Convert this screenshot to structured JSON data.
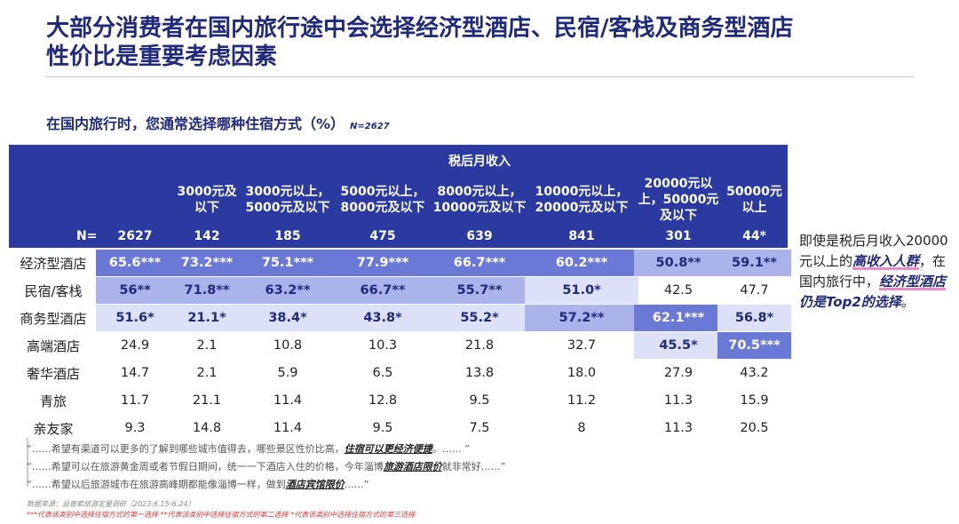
{
  "title_line1": "大部分消费者在国内旅行途中会选择经济型酒店、民宿/客栈及商务型酒店",
  "title_line2": "性价比是重要考虑因素",
  "subtitle": "在国内旅行时，您通常选择哪种住宿方式（%）",
  "subtitle_n": "N=2627",
  "income_header": "税后月收入",
  "n_label": "N=",
  "columns": [
    {
      "label": "",
      "n": "2627"
    },
    {
      "label": "3000元及以下",
      "n": "142"
    },
    {
      "label": "3000元以上，5000元及以下",
      "n": "185"
    },
    {
      "label": "5000元以上，8000元及以下",
      "n": "475"
    },
    {
      "label": "8000元以上，10000元及以下",
      "n": "639"
    },
    {
      "label": "10000元以上，20000元及以下",
      "n": "841"
    },
    {
      "label": "20000元以上，50000元及以下",
      "n": "301"
    },
    {
      "label": "50000元以上",
      "n": "44*"
    }
  ],
  "rows": [
    {
      "label": "经济型酒店",
      "cells": [
        "65.6***",
        "73.2***",
        "75.1***",
        "77.9***",
        "66.7***",
        "60.2***",
        "50.8**",
        "59.1**"
      ]
    },
    {
      "label": "民宿/客栈",
      "cells": [
        "56**",
        "71.8**",
        "63.2**",
        "66.7**",
        "55.7**",
        "51.0*",
        "42.5",
        "47.7"
      ]
    },
    {
      "label": "商务型酒店",
      "cells": [
        "51.6*",
        "21.1*",
        "38.4*",
        "43.8*",
        "55.2*",
        "57.2**",
        "62.1***",
        "56.8*"
      ]
    },
    {
      "label": "高端酒店",
      "cells": [
        "24.9",
        "2.1",
        "10.8",
        "10.3",
        "21.8",
        "32.7",
        "45.5*",
        "70.5***"
      ]
    },
    {
      "label": "奢华酒店",
      "cells": [
        "14.7",
        "2.1",
        "5.9",
        "6.5",
        "13.8",
        "18.0",
        "27.9",
        "43.2"
      ]
    },
    {
      "label": "青旅",
      "cells": [
        "11.7",
        "21.1",
        "11.4",
        "12.8",
        "9.5",
        "11.2",
        "11.3",
        "15.9"
      ]
    },
    {
      "label": "亲友家",
      "cells": [
        "9.3",
        "14.8",
        "11.4",
        "9.5",
        "7.5",
        "8",
        "11.3",
        "20.5"
      ]
    }
  ],
  "note": {
    "p1": "即使是税后月收入20000元以上的",
    "p2": "高收入人群",
    "p3": "，在国内旅行中，",
    "p4": "经济型酒店",
    "p5": "仍是Top2的选择",
    "p6": "。"
  },
  "quotes": [
    {
      "a": "“……希望有渠道可以更多的了解到哪些城市值得去，哪些景区性价比高，",
      "b": "住宿可以更经济便捷",
      "c": "。…… ”"
    },
    {
      "a": "“……希望可以在旅游黄金周或者节假日期间，统一一下酒店入住的价格，今年淄博",
      "b": "旅游酒店限价",
      "c": "就非常好……”"
    },
    {
      "a": "“……希望以后旅游城市在旅游高峰期都能像淄博一样，做到",
      "b": "酒店宾馆限价",
      "c": "……”"
    }
  ],
  "source": "数据来源：益普索旅游定量调研（2023.6.15-6.24）",
  "legend": "***代表该类别中选择住宿方式的第一选择 **代表该类别中选择住宿方式的第二选择 *代表该类别中选择住宿方式的第三选择",
  "chart_data": {
    "type": "table",
    "title": "在国内旅行时，您通常选择哪种住宿方式（%）",
    "categories": [
      "经济型酒店",
      "民宿/客栈",
      "商务型酒店",
      "高端酒店",
      "奢华酒店",
      "青旅",
      "亲友家"
    ],
    "series": [
      {
        "name": "2627",
        "values": [
          65.6,
          56,
          51.6,
          24.9,
          14.7,
          11.7,
          9.3
        ]
      },
      {
        "name": "3000元及以下",
        "values": [
          73.2,
          71.8,
          21.1,
          2.1,
          2.1,
          21.1,
          14.8
        ]
      },
      {
        "name": "3000元以上，5000元及以下",
        "values": [
          75.1,
          63.2,
          38.4,
          10.8,
          5.9,
          11.4,
          11.4
        ]
      },
      {
        "name": "5000元以上，8000元及以下",
        "values": [
          77.9,
          66.7,
          43.8,
          10.3,
          6.5,
          12.8,
          9.5
        ]
      },
      {
        "name": "8000元以上，10000元及以下",
        "values": [
          66.7,
          55.7,
          55.2,
          21.8,
          13.8,
          9.5,
          7.5
        ]
      },
      {
        "name": "10000元以上，20000元及以下",
        "values": [
          60.2,
          51.0,
          57.2,
          32.7,
          18.0,
          11.2,
          8
        ]
      },
      {
        "name": "20000元以上，50000元及以下",
        "values": [
          50.8,
          42.5,
          62.1,
          45.5,
          27.9,
          11.3,
          11.3
        ]
      },
      {
        "name": "50000元以上",
        "values": [
          59.1,
          47.7,
          56.8,
          70.5,
          43.2,
          15.9,
          20.5
        ]
      }
    ],
    "colors": {
      "header": "#2b3aa0",
      "rank1": "#6a78d6",
      "rank2": "#aab3ea",
      "rank3": "#dde1f7"
    }
  }
}
